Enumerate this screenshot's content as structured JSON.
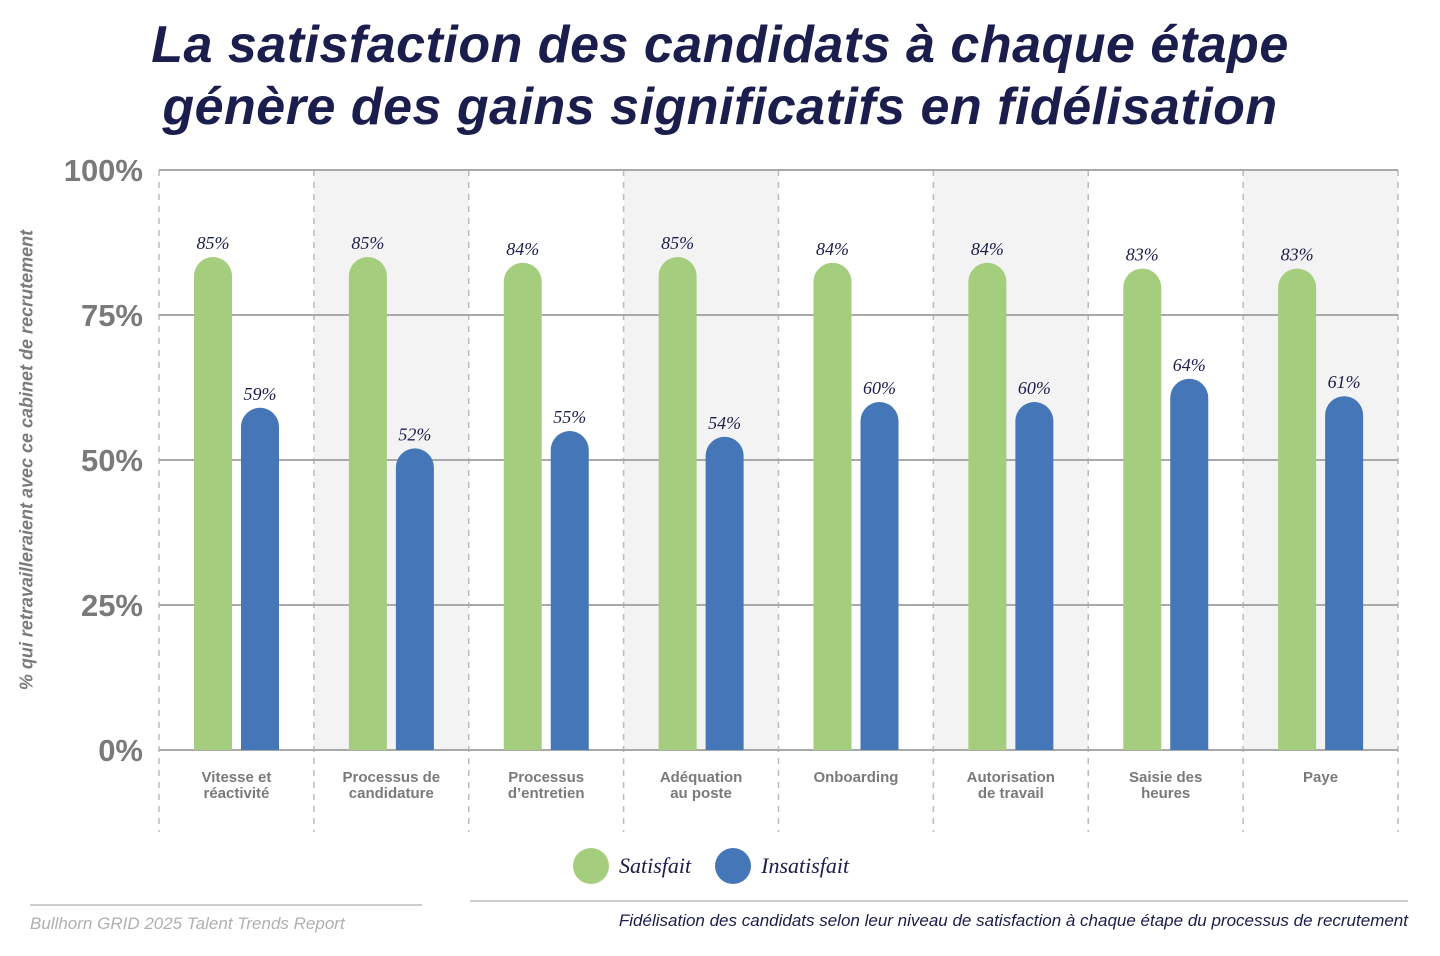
{
  "title_lines": [
    "La satisfaction des candidats à chaque étape",
    "génère des gains significatifs en fidélisation"
  ],
  "chart_data": {
    "type": "bar",
    "title": "La satisfaction des candidats à chaque étape génère des gains significatifs en fidélisation",
    "ylabel": "% qui retravailleraient avec ce cabinet de recrutement",
    "xlabel": "",
    "ylim": [
      0,
      100
    ],
    "yticks": [
      "0%",
      "25%",
      "50%",
      "75%",
      "100%"
    ],
    "grid": "horizontal",
    "legend_position": "bottom",
    "categories": [
      [
        "Vitesse et",
        "réactivité"
      ],
      [
        "Processus de",
        "candidature"
      ],
      [
        "Processus",
        "d’entretien"
      ],
      [
        "Adéquation",
        "au poste"
      ],
      [
        "Onboarding"
      ],
      [
        "Autorisation",
        "de travail"
      ],
      [
        "Saisie des",
        "heures"
      ],
      [
        "Paye"
      ]
    ],
    "series": [
      {
        "name": "Satisfait",
        "color": "#a5cd7e",
        "values": [
          85,
          85,
          84,
          85,
          84,
          84,
          83,
          83
        ]
      },
      {
        "name": "Insatisfait",
        "color": "#4577b8",
        "values": [
          59,
          52,
          55,
          54,
          60,
          60,
          64,
          61
        ]
      }
    ]
  },
  "source": "Bullhorn GRID 2025 Talent Trends Report",
  "caption": "Fidélisation des candidats selon leur niveau de satisfaction à chaque étape du processus de recrutement"
}
